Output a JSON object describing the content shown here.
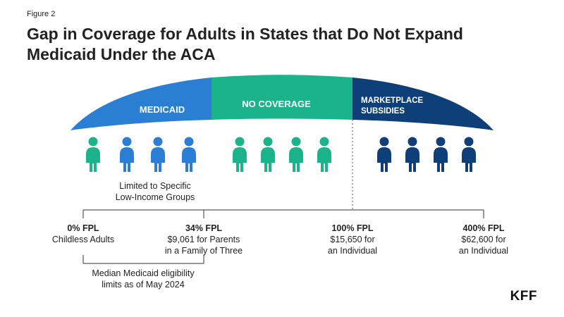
{
  "figure_label": "Figure 2",
  "title": "Gap in Coverage for Adults in States that Do Not Expand Medicaid Under the ACA",
  "bands": [
    {
      "label": "MEDICAID",
      "color": "#2a7fd4"
    },
    {
      "label": "NO COVERAGE",
      "color": "#1bb38a"
    },
    {
      "label_line1": "MARKETPLACE",
      "label_line2": "SUBSIDIES",
      "color": "#0f3f78"
    }
  ],
  "people_colors": {
    "green": "#1bb38a",
    "medium_blue": "#2a7fd4",
    "dark_blue": "#0f3f78"
  },
  "people_groups": [
    [
      "green",
      "medium_blue",
      "medium_blue",
      "medium_blue"
    ],
    [
      "green",
      "green",
      "green",
      "green"
    ],
    [
      "dark_blue",
      "dark_blue",
      "dark_blue",
      "dark_blue"
    ]
  ],
  "limited_note": {
    "line1": "Limited to Specific",
    "line2": "Low-Income Groups"
  },
  "ticks": [
    {
      "head": "0% FPL",
      "line1": "Childless Adults",
      "line2": ""
    },
    {
      "head": "34% FPL",
      "line1": "$9,061 for Parents",
      "line2": "in a Family of Three"
    },
    {
      "head": "100% FPL",
      "line1": "$15,650 for",
      "line2": "an Individual"
    },
    {
      "head": "400% FPL",
      "line1": "$62,600 for",
      "line2": "an Individual"
    }
  ],
  "median_note": {
    "line1": "Median Medicaid eligibility",
    "line2": "limits as of May 2024"
  },
  "logo": "KFF"
}
